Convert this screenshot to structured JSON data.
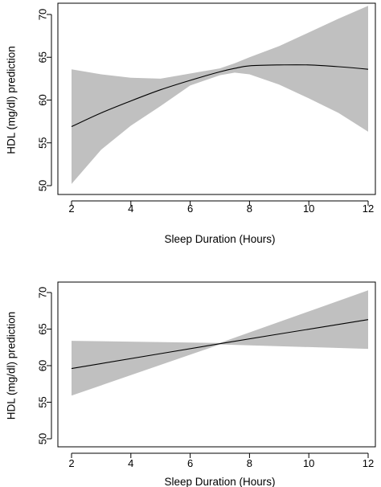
{
  "chart_data": [
    {
      "type": "line",
      "xlabel": "Sleep Duration (Hours)",
      "ylabel": "HDL (mg/dl) prediction",
      "xlim": [
        2,
        12
      ],
      "ylim": [
        50,
        70
      ],
      "xticks": [
        2,
        4,
        6,
        8,
        10,
        12
      ],
      "yticks": [
        50,
        55,
        60,
        65,
        70
      ],
      "grid": false,
      "band_color": "#c0c0c0",
      "line_color": "#000000",
      "series": [
        {
          "x": [
            2,
            3,
            4,
            5,
            6,
            7,
            7.5,
            8,
            9,
            10,
            11,
            12
          ],
          "y": [
            56.9,
            58.5,
            59.9,
            61.2,
            62.3,
            63.3,
            63.7,
            64.0,
            64.1,
            64.1,
            63.9,
            63.6
          ],
          "lower": [
            50.2,
            54.2,
            57.0,
            59.3,
            61.7,
            62.9,
            63.2,
            63.0,
            61.8,
            60.2,
            58.5,
            56.3
          ],
          "upper": [
            63.6,
            63.0,
            62.6,
            62.5,
            63.1,
            63.7,
            64.3,
            65.0,
            66.3,
            67.9,
            69.5,
            71.0
          ]
        }
      ]
    },
    {
      "type": "line",
      "xlabel": "Sleep Duration (Hours)",
      "ylabel": "HDL (mg/dl) prediction",
      "xlim": [
        2,
        12
      ],
      "ylim": [
        50,
        70
      ],
      "xticks": [
        2,
        4,
        6,
        8,
        10,
        12
      ],
      "yticks": [
        50,
        55,
        60,
        65,
        70
      ],
      "grid": false,
      "band_color": "#c0c0c0",
      "line_color": "#000000",
      "series": [
        {
          "x": [
            2,
            7,
            12
          ],
          "y": [
            59.6,
            63.0,
            66.3
          ],
          "lower": [
            55.9,
            62.9,
            62.3
          ],
          "upper": [
            63.4,
            63.1,
            70.3
          ]
        }
      ]
    }
  ]
}
